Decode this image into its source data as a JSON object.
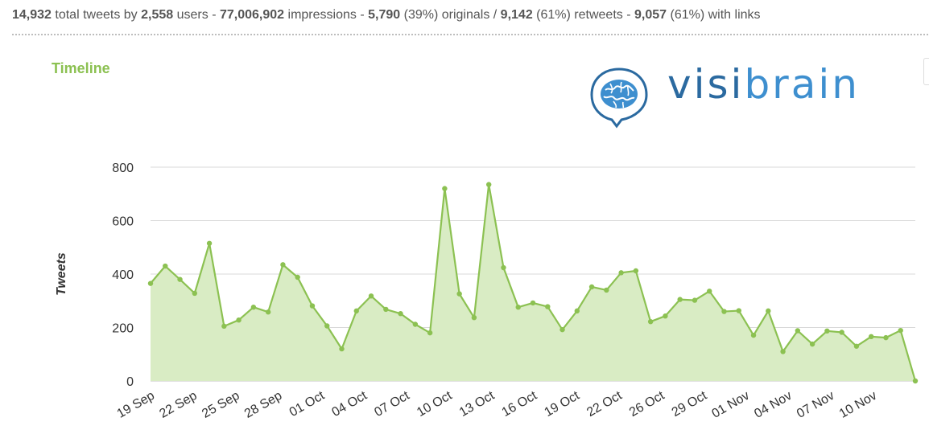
{
  "stats": {
    "total_tweets": "14,932",
    "total_tweets_label": "total tweets by",
    "users": "2,558",
    "users_label": "users -",
    "impressions": "77,006,902",
    "impressions_label": "impressions -",
    "originals": "5,790",
    "originals_label": "(39%) originals /",
    "retweets": "9,142",
    "retweets_label": "(61%) retweets -",
    "links": "9,057",
    "links_label": "(61%) with links"
  },
  "section_title": "Timeline",
  "logo": {
    "part1": "visi",
    "part2": "brain",
    "icon": "brain-speech-bubble-icon"
  },
  "colors": {
    "line": "#8cc152",
    "fill": "#d9ecc4",
    "grid": "#d9d9d9",
    "title": "#8cc152",
    "logo_dark": "#2b6aa0",
    "logo_light": "#3e8fcf"
  },
  "chart_data": {
    "type": "area",
    "title": "",
    "xlabel": "",
    "ylabel": "Tweets",
    "ylim": [
      0,
      800
    ],
    "yticks": [
      0,
      200,
      400,
      600,
      800
    ],
    "grid": true,
    "x_tick_labels": [
      "19 Sep",
      "22 Sep",
      "25 Sep",
      "28 Sep",
      "01 Oct",
      "04 Oct",
      "07 Oct",
      "10 Oct",
      "13 Oct",
      "16 Oct",
      "19 Oct",
      "22 Oct",
      "26 Oct",
      "29 Oct",
      "01 Nov",
      "04 Nov",
      "07 Nov",
      "10 Nov"
    ],
    "values": [
      365,
      430,
      380,
      328,
      515,
      205,
      228,
      276,
      258,
      435,
      388,
      281,
      206,
      120,
      262,
      318,
      268,
      252,
      212,
      180,
      720,
      326,
      237,
      735,
      424,
      276,
      292,
      278,
      192,
      262,
      352,
      340,
      405,
      412,
      222,
      243,
      305,
      302,
      336,
      260,
      263,
      171,
      262,
      110,
      188,
      138,
      187,
      182,
      130,
      166,
      162,
      189,
      0
    ]
  }
}
